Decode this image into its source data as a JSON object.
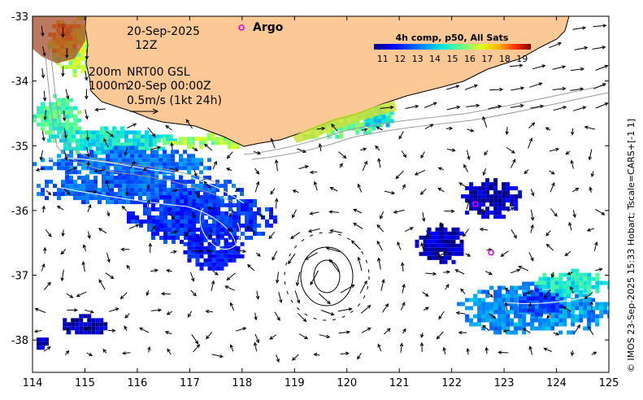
{
  "map": {
    "date": "20-Sep-2025",
    "hour": "12Z",
    "depth_line_1": "200m",
    "depth_line_2": "1000m",
    "product": "NRT00 GSL",
    "current_time": "20-Sep 00:00Z",
    "scale_note": "0.5m/s (1kt 24h)",
    "argo_label": "Argo",
    "colorbar": {
      "title": "4h comp, p50, All Sats",
      "ticks": [
        "11",
        "12",
        "13",
        "14",
        "15",
        "16",
        "17",
        "18",
        "19"
      ],
      "min": 10.5,
      "max": 19.5
    },
    "side_note": "© IMOS 23-Sep-2025 15:33 Hobart; Tscale=CARS+[-1 1]",
    "lon_ticks": [
      "114",
      "115",
      "116",
      "117",
      "118",
      "119",
      "120",
      "121",
      "122",
      "123",
      "124",
      "125"
    ],
    "lat_ticks": [
      "-33",
      "-34",
      "-35",
      "-36",
      "-37",
      "-38"
    ],
    "lon_range": [
      114,
      125
    ],
    "lat_range": [
      -38.5,
      -33
    ],
    "colors": {
      "land": "#fcc896",
      "arrow": "#000000",
      "argo": "#e000e0",
      "contour": "#9a9a9a"
    },
    "argo_floats": [
      {
        "lon": 122.45,
        "lat": -35.9
      },
      {
        "lon": 122.75,
        "lat": -36.65
      }
    ],
    "sst_regions": [
      {
        "temp": 16.2,
        "lon": [
          114.3,
          115.6
        ],
        "lat": [
          -33.0,
          -33.9
        ]
      },
      {
        "temp": 17.6,
        "lon": [
          114.3,
          114.9
        ],
        "lat": [
          -33.0,
          -33.6
        ]
      },
      {
        "temp": 18.6,
        "lon": [
          114.4,
          114.7
        ],
        "lat": [
          -33.05,
          -33.35
        ]
      },
      {
        "temp": 15.2,
        "lon": [
          114.0,
          114.9
        ],
        "lat": [
          -34.2,
          -34.9
        ]
      },
      {
        "temp": 14.5,
        "lon": [
          114.2,
          116.7
        ],
        "lat": [
          -34.7,
          -35.1
        ]
      },
      {
        "temp": 16.0,
        "lon": [
          116.4,
          118.4
        ],
        "lat": [
          -34.8,
          -35.0
        ]
      },
      {
        "temp": 15.6,
        "lon": [
          118.3,
          120.8
        ],
        "lat": [
          -34.2,
          -34.85
        ]
      },
      {
        "temp": 14.2,
        "lon": [
          120.2,
          120.9
        ],
        "lat": [
          -34.4,
          -34.7
        ]
      },
      {
        "temp": 13.0,
        "lon": [
          114.0,
          117.4
        ],
        "lat": [
          -35.0,
          -35.5
        ]
      },
      {
        "temp": 12.8,
        "lon": [
          114.0,
          118.0
        ],
        "lat": [
          -35.4,
          -35.9
        ]
      },
      {
        "temp": 12.2,
        "lon": [
          115.8,
          118.6
        ],
        "lat": [
          -35.7,
          -36.5
        ]
      },
      {
        "temp": 11.8,
        "lon": [
          116.8,
          118.0
        ],
        "lat": [
          -36.3,
          -36.9
        ]
      },
      {
        "temp": 11.0,
        "lon": [
          121.3,
          122.3
        ],
        "lat": [
          -36.2,
          -36.8
        ]
      },
      {
        "temp": 11.0,
        "lon": [
          122.1,
          123.3
        ],
        "lat": [
          -35.5,
          -36.1
        ]
      },
      {
        "temp": 11.0,
        "lon": [
          114.5,
          115.4
        ],
        "lat": [
          -37.6,
          -37.9
        ]
      },
      {
        "temp": 11.0,
        "lon": [
          114.0,
          114.3
        ],
        "lat": [
          -37.9,
          -38.1
        ]
      },
      {
        "temp": 13.4,
        "lon": [
          122.1,
          125.0
        ],
        "lat": [
          -37.1,
          -37.9
        ]
      },
      {
        "temp": 12.4,
        "lon": [
          123.2,
          124.1
        ],
        "lat": [
          -37.2,
          -37.6
        ]
      },
      {
        "temp": 14.6,
        "lon": [
          123.5,
          125.0
        ],
        "lat": [
          -36.9,
          -37.3
        ]
      }
    ]
  }
}
